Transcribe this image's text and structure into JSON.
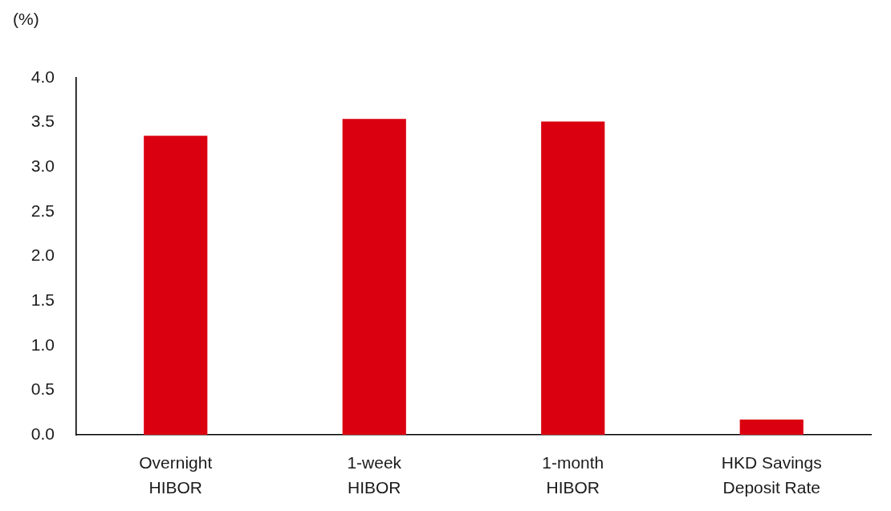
{
  "chart_data": {
    "type": "bar",
    "ylabel": "(%)",
    "categories": [
      "Overnight HIBOR",
      "1-week HIBOR",
      "1-month HIBOR",
      "HKD Savings Deposit Rate"
    ],
    "values": [
      3.35,
      3.54,
      3.51,
      0.17
    ],
    "color": "#da0010",
    "ylim": [
      0,
      4
    ],
    "yticks": [
      {
        "value": 0,
        "label": "0.0"
      },
      0.5,
      {
        "value": 1,
        "label": "1.0"
      },
      1.5,
      {
        "value": 2,
        "label": "2.0"
      },
      2.5,
      {
        "value": 3,
        "label": "3.0"
      },
      3.5,
      {
        "value": 4,
        "label": "4.0"
      }
    ],
    "grid": false,
    "legend": false
  }
}
